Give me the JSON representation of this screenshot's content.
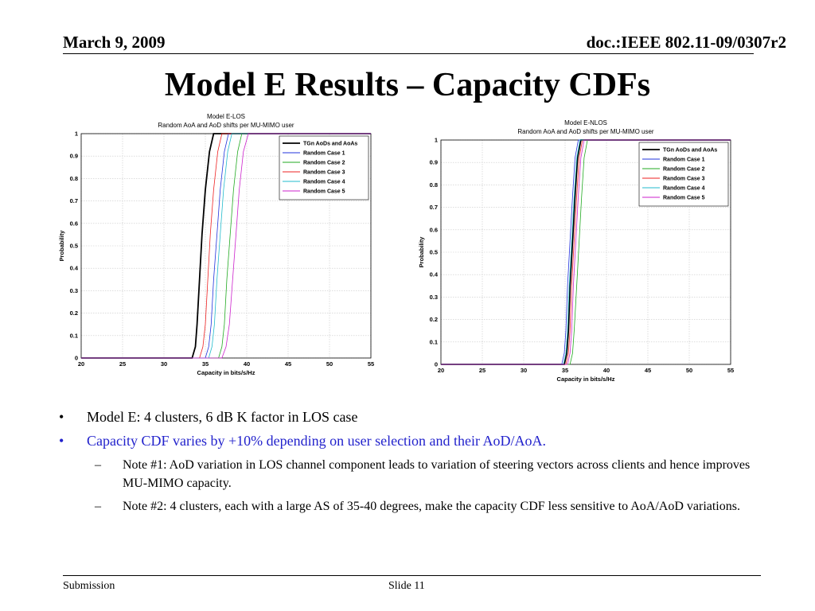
{
  "header": {
    "date": "March 9, 2009",
    "doc": "doc.:IEEE 802.11-09/0307r2"
  },
  "title": "Model E Results – Capacity CDFs",
  "colors": {
    "tgn": "#000000",
    "case1": "#2233dd",
    "case2": "#22aa22",
    "case3": "#ee2222",
    "case4": "#22bbcc",
    "case5": "#cc22cc",
    "blue_text": "#2222cc"
  },
  "chart_data": [
    {
      "type": "line",
      "title": "Model E-LOS",
      "subtitle": "Random AoA and AoD shifts per MU-MIMO user",
      "xlabel": "Capacity in bits/s/Hz",
      "ylabel": "Probability",
      "xlim": [
        20,
        55
      ],
      "ylim": [
        0,
        1
      ],
      "xticks": [
        "20",
        "25",
        "30",
        "35",
        "40",
        "45",
        "50",
        "55"
      ],
      "yticks": [
        "0",
        "0.1",
        "0.2",
        "0.3",
        "0.4",
        "0.5",
        "0.6",
        "0.7",
        "0.8",
        "0.9",
        "1"
      ],
      "grid": true,
      "legend_position": "top-right",
      "series": [
        {
          "name": "TGn AoDs and AoAs",
          "color": "#000000",
          "bold": true,
          "x": [
            20,
            33.4,
            33.8,
            34.0,
            34.3,
            34.6,
            35.0,
            35.5,
            36.0,
            55
          ],
          "y": [
            0,
            0,
            0.05,
            0.15,
            0.35,
            0.55,
            0.75,
            0.92,
            1,
            1
          ]
        },
        {
          "name": "Random Case 1",
          "color": "#2233dd",
          "x": [
            20,
            35.0,
            35.4,
            35.7,
            36.0,
            36.4,
            36.8,
            37.3,
            37.8,
            55
          ],
          "y": [
            0,
            0,
            0.05,
            0.15,
            0.35,
            0.55,
            0.75,
            0.92,
            1,
            1
          ]
        },
        {
          "name": "Random Case 2",
          "color": "#22aa22",
          "x": [
            20,
            36.6,
            37.0,
            37.3,
            37.6,
            38.0,
            38.4,
            38.9,
            39.4,
            55
          ],
          "y": [
            0,
            0,
            0.05,
            0.15,
            0.35,
            0.55,
            0.75,
            0.92,
            1,
            1
          ]
        },
        {
          "name": "Random Case 3",
          "color": "#ee2222",
          "x": [
            20,
            34.3,
            34.7,
            35.0,
            35.3,
            35.6,
            36.0,
            36.5,
            37.0,
            55
          ],
          "y": [
            0,
            0,
            0.05,
            0.15,
            0.35,
            0.55,
            0.75,
            0.92,
            1,
            1
          ]
        },
        {
          "name": "Random Case 4",
          "color": "#22bbcc",
          "x": [
            20,
            35.4,
            35.8,
            36.1,
            36.4,
            36.8,
            37.2,
            37.7,
            38.2,
            55
          ],
          "y": [
            0,
            0,
            0.05,
            0.15,
            0.35,
            0.55,
            0.75,
            0.92,
            1,
            1
          ]
        },
        {
          "name": "Random Case 5",
          "color": "#cc22cc",
          "x": [
            20,
            37.0,
            37.5,
            37.9,
            38.3,
            38.7,
            39.1,
            39.6,
            40.2,
            55
          ],
          "y": [
            0,
            0,
            0.05,
            0.15,
            0.35,
            0.55,
            0.75,
            0.92,
            1,
            1
          ]
        }
      ]
    },
    {
      "type": "line",
      "title": "Model E-NLOS",
      "subtitle": "Random AoA and AoD shifts per MU-MIMO user",
      "xlabel": "Capacity in bits/s/Hz",
      "ylabel": "Probability",
      "xlim": [
        20,
        55
      ],
      "ylim": [
        0,
        1
      ],
      "xticks": [
        "20",
        "25",
        "30",
        "35",
        "40",
        "45",
        "50",
        "55"
      ],
      "yticks": [
        "0",
        "0.1",
        "0.2",
        "0.3",
        "0.4",
        "0.5",
        "0.6",
        "0.7",
        "0.8",
        "0.9",
        "1"
      ],
      "grid": true,
      "legend_position": "top-right",
      "series": [
        {
          "name": "TGn AoDs and AoAs",
          "color": "#000000",
          "bold": true,
          "x": [
            20,
            34.9,
            35.2,
            35.4,
            35.6,
            35.9,
            36.2,
            36.5,
            36.9,
            55
          ],
          "y": [
            0,
            0,
            0.05,
            0.15,
            0.35,
            0.55,
            0.75,
            0.92,
            1,
            1
          ]
        },
        {
          "name": "Random Case 1",
          "color": "#2233dd",
          "x": [
            20,
            34.6,
            34.9,
            35.1,
            35.3,
            35.6,
            35.9,
            36.2,
            36.6,
            55
          ],
          "y": [
            0,
            0,
            0.05,
            0.15,
            0.35,
            0.55,
            0.75,
            0.92,
            1,
            1
          ]
        },
        {
          "name": "Random Case 2",
          "color": "#22aa22",
          "x": [
            20,
            35.6,
            35.9,
            36.1,
            36.4,
            36.7,
            37.0,
            37.3,
            37.7,
            55
          ],
          "y": [
            0,
            0,
            0.05,
            0.15,
            0.35,
            0.55,
            0.75,
            0.92,
            1,
            1
          ]
        },
        {
          "name": "Random Case 3",
          "color": "#ee2222",
          "x": [
            20,
            35.1,
            35.4,
            35.6,
            35.8,
            36.1,
            36.4,
            36.7,
            37.1,
            55
          ],
          "y": [
            0,
            0,
            0.05,
            0.15,
            0.35,
            0.55,
            0.75,
            0.92,
            1,
            1
          ]
        },
        {
          "name": "Random Case 4",
          "color": "#22bbcc",
          "x": [
            20,
            34.8,
            35.1,
            35.3,
            35.5,
            35.8,
            36.1,
            36.4,
            36.8,
            55
          ],
          "y": [
            0,
            0,
            0.05,
            0.15,
            0.35,
            0.55,
            0.75,
            0.92,
            1,
            1
          ]
        },
        {
          "name": "Random Case 5",
          "color": "#cc22cc",
          "x": [
            20,
            35.3,
            35.6,
            35.8,
            36.0,
            36.3,
            36.6,
            36.9,
            37.3,
            55
          ],
          "y": [
            0,
            0,
            0.05,
            0.15,
            0.35,
            0.55,
            0.75,
            0.92,
            1,
            1
          ]
        }
      ]
    }
  ],
  "bullets": {
    "b1": "Model E: 4 clusters, 6 dB K factor in LOS case",
    "b2": "Capacity CDF varies by +10% depending on user selection and their AoD/AoA.",
    "note1": "Note #1: AoD variation in LOS channel component leads to variation of steering vectors across clients and hence improves MU-MIMO capacity.",
    "note2": "Note #2:  4 clusters, each with a large AS of 35-40 degrees, make the capacity CDF less sensitive to AoA/AoD variations.",
    "bullet_glyph": "•",
    "dash_glyph": "–"
  },
  "footer": {
    "left": "Submission",
    "slide": "Slide 11"
  }
}
